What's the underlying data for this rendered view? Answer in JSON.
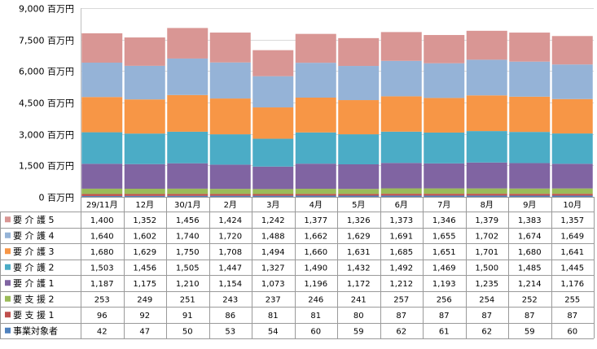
{
  "chart_data": {
    "type": "bar",
    "stacked": true,
    "title": "",
    "xlabel": "",
    "ylabel": "",
    "ylim": [
      0,
      9000
    ],
    "yticks": [
      0,
      1500,
      3000,
      4500,
      6000,
      7500,
      9000
    ],
    "ytick_labels": [
      "0 百万円",
      "1,500 百万円",
      "3,000 百万円",
      "4,500 百万円",
      "6,000 百万円",
      "7,500 百万円",
      "9,000 百万円"
    ],
    "grid": true,
    "legend": "data-table-left",
    "categories": [
      "29/11月",
      "12月",
      "30/1月",
      "2月",
      "3月",
      "4月",
      "5月",
      "6月",
      "7月",
      "8月",
      "9月",
      "10月"
    ],
    "series": [
      {
        "name": "事業対象者",
        "color": "#4f81bd",
        "values": [
          42,
          47,
          50,
          53,
          54,
          60,
          59,
          62,
          61,
          62,
          59,
          60
        ],
        "labels": [
          "42",
          "47",
          "50",
          "53",
          "54",
          "60",
          "59",
          "62",
          "61",
          "62",
          "59",
          "60"
        ]
      },
      {
        "name": "要 支 援 1",
        "color": "#c0504d",
        "values": [
          96,
          92,
          91,
          86,
          81,
          81,
          80,
          87,
          87,
          87,
          87,
          87
        ],
        "labels": [
          "96",
          "92",
          "91",
          "86",
          "81",
          "81",
          "80",
          "87",
          "87",
          "87",
          "87",
          "87"
        ]
      },
      {
        "name": "要 支 援 2",
        "color": "#9bbb59",
        "values": [
          253,
          249,
          251,
          243,
          237,
          246,
          241,
          257,
          256,
          254,
          252,
          255
        ],
        "labels": [
          "253",
          "249",
          "251",
          "243",
          "237",
          "246",
          "241",
          "257",
          "256",
          "254",
          "252",
          "255"
        ]
      },
      {
        "name": "要 介 護 1",
        "color": "#8064a2",
        "values": [
          1187,
          1175,
          1210,
          1154,
          1073,
          1196,
          1172,
          1212,
          1193,
          1235,
          1214,
          1176
        ],
        "labels": [
          "1,187",
          "1,175",
          "1,210",
          "1,154",
          "1,073",
          "1,196",
          "1,172",
          "1,212",
          "1,193",
          "1,235",
          "1,214",
          "1,176"
        ]
      },
      {
        "name": "要 介 護 2",
        "color": "#4bacc6",
        "values": [
          1503,
          1456,
          1505,
          1447,
          1327,
          1490,
          1432,
          1492,
          1469,
          1500,
          1485,
          1445
        ],
        "labels": [
          "1,503",
          "1,456",
          "1,505",
          "1,447",
          "1,327",
          "1,490",
          "1,432",
          "1,492",
          "1,469",
          "1,500",
          "1,485",
          "1,445"
        ]
      },
      {
        "name": "要 介 護 3",
        "color": "#f79646",
        "values": [
          1680,
          1629,
          1750,
          1708,
          1494,
          1660,
          1631,
          1685,
          1651,
          1701,
          1680,
          1641
        ],
        "labels": [
          "1,680",
          "1,629",
          "1,750",
          "1,708",
          "1,494",
          "1,660",
          "1,631",
          "1,685",
          "1,651",
          "1,701",
          "1,680",
          "1,641"
        ]
      },
      {
        "name": "要 介 護 4",
        "color": "#95b3d7",
        "values": [
          1640,
          1602,
          1740,
          1720,
          1488,
          1662,
          1629,
          1691,
          1655,
          1702,
          1674,
          1649
        ],
        "labels": [
          "1,640",
          "1,602",
          "1,740",
          "1,720",
          "1,488",
          "1,662",
          "1,629",
          "1,691",
          "1,655",
          "1,702",
          "1,674",
          "1,649"
        ]
      },
      {
        "name": "要 介 護 5",
        "color": "#d99694",
        "values": [
          1400,
          1352,
          1456,
          1424,
          1242,
          1377,
          1326,
          1373,
          1346,
          1379,
          1383,
          1357
        ],
        "labels": [
          "1,400",
          "1,352",
          "1,456",
          "1,424",
          "1,242",
          "1,377",
          "1,326",
          "1,373",
          "1,346",
          "1,379",
          "1,383",
          "1,357"
        ]
      }
    ]
  }
}
